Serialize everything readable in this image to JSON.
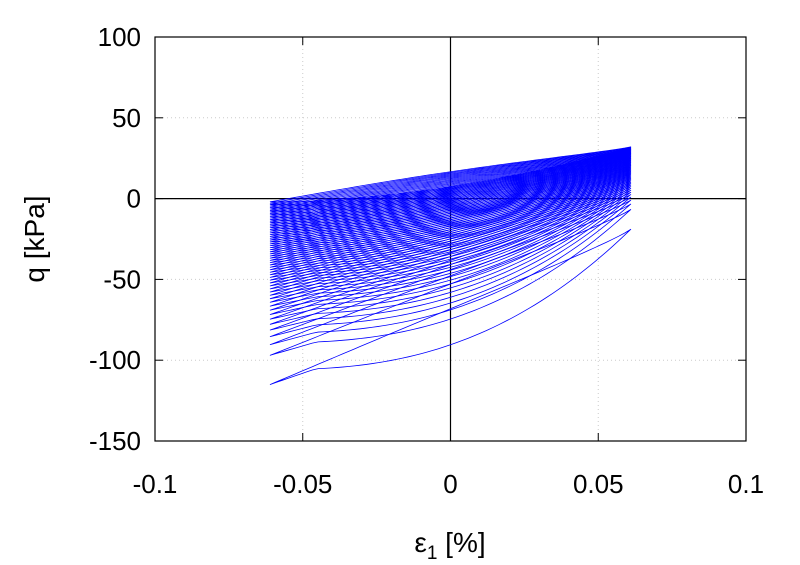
{
  "chart_data": {
    "type": "line",
    "title": "",
    "xlabel": "ε1 [%]",
    "xlabel_main": "ε",
    "xlabel_sub": "1",
    "xlabel_unit": " [%]",
    "ylabel": "q [kPa]",
    "xlim": [
      -0.1,
      0.1
    ],
    "ylim": [
      -150,
      100
    ],
    "xticks": [
      -0.1,
      -0.05,
      0,
      0.05,
      0.1
    ],
    "xtick_labels": [
      "-0.1",
      "-0.05",
      "0",
      "0.05",
      "0.1"
    ],
    "yticks": [
      100,
      50,
      0,
      -50,
      -100,
      -150
    ],
    "ytick_labels": [
      "100",
      "50",
      "0",
      "-50",
      "-100",
      "-150"
    ],
    "grid": true,
    "zero_lines": true,
    "legend": "none",
    "series": [
      {
        "color": "#0000ff",
        "description": "cyclic stress-strain loops, strain amplitude ±0.061%",
        "strain_amplitude": 0.061,
        "loops": 60,
        "first_loop_min_q": -115,
        "first_loop_end_q_at_max_strain": -19,
        "max_q_at_max_strain": 32,
        "final_min_q_at_min_strain": -2
      }
    ]
  }
}
